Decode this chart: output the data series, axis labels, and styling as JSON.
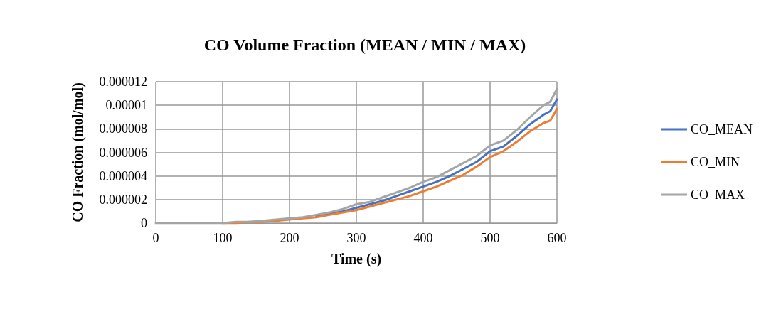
{
  "chart_data": {
    "type": "line",
    "title": "CO Volume Fraction (MEAN / MIN / MAX)",
    "xlabel": "Time (s)",
    "ylabel": "CO Fraction (mol/mol)",
    "x": [
      0,
      20,
      40,
      60,
      80,
      100,
      120,
      140,
      160,
      180,
      200,
      220,
      240,
      260,
      280,
      300,
      320,
      340,
      360,
      380,
      400,
      420,
      440,
      460,
      480,
      500,
      520,
      540,
      560,
      580,
      590,
      600
    ],
    "series": [
      {
        "name": "CO_MEAN",
        "color": "#4472c4",
        "values": [
          null,
          null,
          null,
          null,
          null,
          null,
          null,
          null,
          null,
          null,
          null,
          null,
          6e-07,
          8e-07,
          1e-06,
          1.3e-06,
          1.6e-06,
          1.9e-06,
          2.3e-06,
          2.7e-06,
          3.1e-06,
          3.5e-06,
          4e-06,
          4.6e-06,
          5.2e-06,
          6.1e-06,
          6.5e-06,
          7.4e-06,
          8.4e-06,
          9.2e-06,
          9.5e-06,
          1.05e-05
        ]
      },
      {
        "name": "CO_MIN",
        "color": "#ed7d31",
        "values": [
          null,
          null,
          null,
          null,
          null,
          0,
          0,
          1e-07,
          1e-07,
          2e-07,
          3e-07,
          4e-07,
          5e-07,
          7e-07,
          9e-07,
          1.1e-06,
          1.4e-06,
          1.7e-06,
          2e-06,
          2.3e-06,
          2.7e-06,
          3.1e-06,
          3.6e-06,
          4.1e-06,
          4.8e-06,
          5.6e-06,
          6.1e-06,
          6.9e-06,
          7.8e-06,
          8.5e-06,
          8.7e-06,
          9.7e-06
        ]
      },
      {
        "name": "CO_MAX",
        "color": "#a5a5a5",
        "values": [
          0,
          0,
          0,
          0,
          0,
          0,
          1e-07,
          1e-07,
          2e-07,
          3e-07,
          4e-07,
          5e-07,
          7e-07,
          9e-07,
          1.2e-06,
          1.6e-06,
          1.8e-06,
          2.2e-06,
          2.6e-06,
          3e-06,
          3.5e-06,
          3.9e-06,
          4.5e-06,
          5.1e-06,
          5.7e-06,
          6.6e-06,
          7e-06,
          7.9e-06,
          9e-06,
          1e-05,
          1.03e-05,
          1.14e-05
        ]
      }
    ],
    "xlim": [
      0,
      600
    ],
    "xticks": [
      0,
      100,
      200,
      300,
      400,
      500,
      600
    ],
    "ylim": [
      0,
      1.2e-05
    ],
    "yticks": [
      0,
      {
        "value": 2e-06,
        "label": "0.000002"
      },
      {
        "value": 4e-06,
        "label": "0.000004"
      },
      {
        "value": 6e-06,
        "label": "0.000006"
      },
      {
        "value": 8e-06,
        "label": "0.000008"
      },
      {
        "value": 1e-05,
        "label": "0.00001"
      },
      {
        "value": 1.2e-05,
        "label": "0.000012"
      }
    ],
    "grid": true,
    "legend": "right",
    "marker": "none",
    "line_style": "solid"
  }
}
